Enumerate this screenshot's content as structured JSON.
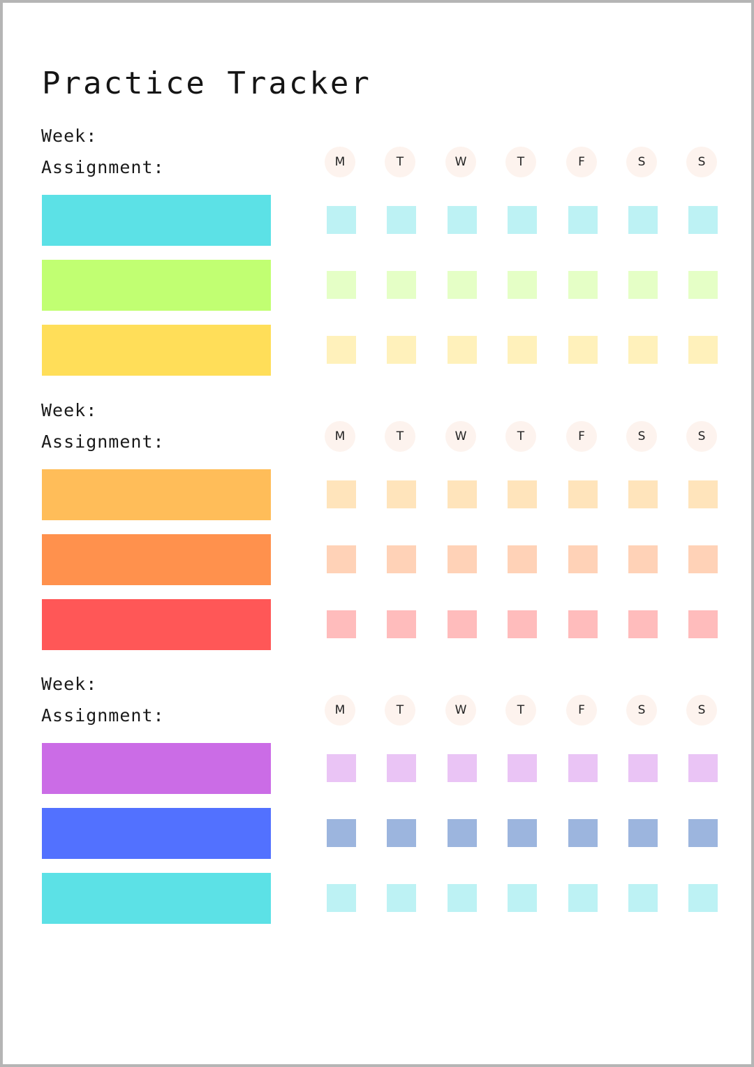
{
  "title": "Practice Tracker",
  "labels": {
    "week": "Week:",
    "assignment": "Assignment:"
  },
  "days": [
    "M",
    "T",
    "W",
    "T",
    "F",
    "S",
    "S"
  ],
  "weeks": [
    {
      "rows": [
        {
          "bar_color": "#5ce1e6",
          "cell_color": "#bdf2f4",
          "checked": [
            false,
            false,
            false,
            false,
            false,
            false,
            false
          ]
        },
        {
          "bar_color": "#c1ff72",
          "cell_color": "#e5ffc6",
          "checked": [
            false,
            false,
            false,
            false,
            false,
            false,
            false
          ]
        },
        {
          "bar_color": "#ffde59",
          "cell_color": "#fff1bb",
          "checked": [
            false,
            false,
            false,
            false,
            false,
            false,
            false
          ]
        }
      ]
    },
    {
      "rows": [
        {
          "bar_color": "#ffbd59",
          "cell_color": "#ffe4bb",
          "checked": [
            false,
            false,
            false,
            false,
            false,
            false,
            false
          ]
        },
        {
          "bar_color": "#ff914d",
          "cell_color": "#ffd2b7",
          "checked": [
            false,
            false,
            false,
            false,
            false,
            false,
            false
          ]
        },
        {
          "bar_color": "#ff5757",
          "cell_color": "#ffbcbc",
          "checked": [
            false,
            false,
            false,
            false,
            false,
            false,
            false
          ]
        }
      ]
    },
    {
      "rows": [
        {
          "bar_color": "#cb6ce6",
          "cell_color": "#eac4f5",
          "checked": [
            false,
            false,
            false,
            false,
            false,
            false,
            false
          ]
        },
        {
          "bar_color": "#5271ff",
          "cell_color": "#9cb5de",
          "checked": [
            false,
            false,
            false,
            false,
            false,
            false,
            false
          ]
        },
        {
          "bar_color": "#5ce1e6",
          "cell_color": "#bdf2f4",
          "checked": [
            false,
            false,
            false,
            false,
            false,
            false,
            false
          ]
        }
      ]
    }
  ]
}
